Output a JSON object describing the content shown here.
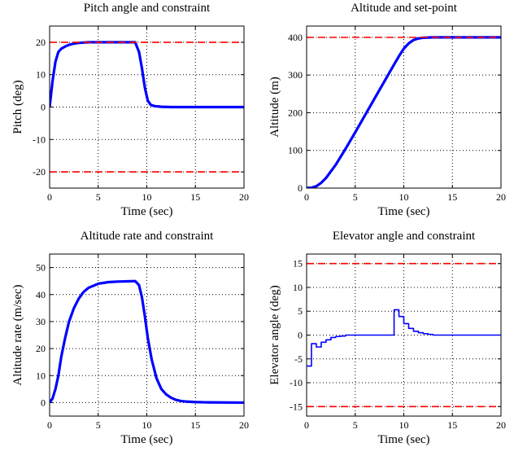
{
  "chart_data": [
    {
      "type": "line",
      "title": "Pitch angle and constraint",
      "xlabel": "Time (sec)",
      "ylabel": "Pitch (deg)",
      "xlim": [
        0,
        20
      ],
      "ylim": [
        -25,
        25
      ],
      "xticks": [
        0,
        5,
        10,
        15,
        20
      ],
      "yticks": [
        -20,
        -10,
        0,
        10,
        20
      ],
      "grid": true,
      "series": [
        {
          "role": "signal",
          "color": "#0000ff",
          "x": [
            0,
            0.3,
            0.6,
            0.9,
            1.2,
            1.6,
            2,
            2.5,
            3,
            4,
            5,
            6,
            7,
            8,
            8.8,
            9.2,
            9.5,
            9.8,
            10.1,
            10.4,
            10.8,
            11.5,
            12.5,
            14,
            20
          ],
          "y": [
            0,
            8,
            14,
            17,
            18,
            18.7,
            19.2,
            19.6,
            19.8,
            20,
            20,
            20,
            20,
            20,
            20,
            17,
            12,
            6,
            2,
            0.7,
            0.3,
            0.1,
            0,
            0,
            0
          ]
        },
        {
          "role": "constraint",
          "color": "#ff0000",
          "x": [
            0,
            20
          ],
          "y": [
            20,
            20
          ]
        },
        {
          "role": "constraint",
          "color": "#ff0000",
          "x": [
            0,
            20
          ],
          "y": [
            -20,
            -20
          ]
        }
      ]
    },
    {
      "type": "line",
      "title": "Altitude and set-point",
      "xlabel": "Time (sec)",
      "ylabel": "Altitude (m)",
      "xlim": [
        0,
        20
      ],
      "ylim": [
        0,
        430
      ],
      "xticks": [
        0,
        5,
        10,
        15,
        20
      ],
      "yticks": [
        0,
        100,
        200,
        300,
        400
      ],
      "grid": true,
      "series": [
        {
          "role": "signal",
          "color": "#0000ff",
          "x": [
            0,
            0.5,
            1,
            1.5,
            2,
            3,
            4,
            5,
            6,
            7,
            8,
            9,
            9.5,
            10,
            10.5,
            11,
            11.5,
            12,
            13,
            14,
            20
          ],
          "y": [
            0,
            1,
            5,
            14,
            27,
            62,
            104,
            148,
            193,
            238,
            283,
            328,
            350,
            370,
            384,
            393,
            397,
            399,
            400,
            400,
            400
          ]
        },
        {
          "role": "set-point",
          "color": "#ff0000",
          "x": [
            0,
            20
          ],
          "y": [
            400,
            400
          ]
        }
      ]
    },
    {
      "type": "line",
      "title": "Altitude rate and constraint",
      "xlabel": "Time (sec)",
      "ylabel": "Altitude rate (m/sec)",
      "xlim": [
        0,
        20
      ],
      "ylim": [
        -5,
        55
      ],
      "xticks": [
        0,
        5,
        10,
        15,
        20
      ],
      "yticks": [
        0,
        10,
        20,
        30,
        40,
        50
      ],
      "grid": true,
      "series": [
        {
          "role": "signal",
          "color": "#0000ff",
          "x": [
            0,
            0.3,
            0.6,
            0.9,
            1.2,
            1.6,
            2,
            2.5,
            3,
            3.5,
            4,
            5,
            6,
            7,
            8,
            8.8,
            9.2,
            9.5,
            9.8,
            10.1,
            10.5,
            11,
            11.5,
            12,
            12.5,
            13,
            13.5,
            14,
            15,
            16,
            20
          ],
          "y": [
            0,
            1.5,
            5,
            10,
            17,
            24,
            30,
            35,
            38.5,
            41,
            42.5,
            44,
            44.6,
            44.8,
            44.9,
            45,
            43.5,
            39,
            32,
            24,
            16,
            9,
            5,
            3,
            1.8,
            1,
            0.6,
            0.4,
            0.2,
            0.1,
            0
          ]
        }
      ]
    },
    {
      "type": "line",
      "title": "Elevator angle and constraint",
      "xlabel": "Time (sec)",
      "ylabel": "Elevator angle (deg)",
      "xlim": [
        0,
        20
      ],
      "ylim": [
        -17,
        17
      ],
      "xticks": [
        0,
        5,
        10,
        15,
        20
      ],
      "yticks": [
        -15,
        -10,
        -5,
        0,
        5,
        10,
        15
      ],
      "grid": true,
      "series": [
        {
          "role": "signal",
          "color": "#0000ff",
          "step": true,
          "x": [
            0,
            0.5,
            1,
            1.5,
            2,
            2.5,
            3,
            3.5,
            4,
            5,
            6,
            7,
            8,
            9,
            9.5,
            10,
            10.5,
            11,
            11.5,
            12,
            12.5,
            13,
            14,
            20
          ],
          "y": [
            -6.5,
            -1.8,
            -2.5,
            -1.5,
            -1,
            -0.5,
            -0.3,
            -0.2,
            0,
            0,
            0,
            0,
            0,
            5.3,
            3.9,
            2.4,
            1.4,
            0.8,
            0.5,
            0.3,
            0.15,
            0,
            0,
            0
          ]
        },
        {
          "role": "constraint",
          "color": "#ff0000",
          "x": [
            0,
            20
          ],
          "y": [
            15,
            15
          ]
        },
        {
          "role": "constraint",
          "color": "#ff0000",
          "x": [
            0,
            20
          ],
          "y": [
            -15,
            -15
          ]
        }
      ]
    }
  ]
}
